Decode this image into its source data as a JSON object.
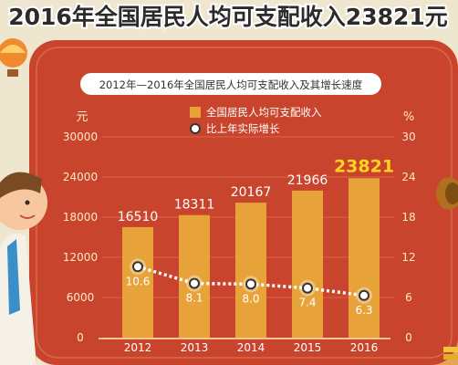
{
  "headline": "2016年全国居民人均可支配收入23821元",
  "chart_data": {
    "type": "bar",
    "title": "2012年—2016年全国居民人均可支配收入及其增长速度",
    "categories": [
      "2012",
      "2013",
      "2014",
      "2015",
      "2016"
    ],
    "y_left_unit": "元",
    "y_right_unit": "%",
    "ylim_left": [
      0,
      30000
    ],
    "ylim_right": [
      0,
      30
    ],
    "y_left_ticks": [
      "0",
      "6000",
      "12000",
      "18000",
      "24000",
      "30000"
    ],
    "y_right_ticks": [
      "0",
      "6",
      "12",
      "18",
      "24",
      "30"
    ],
    "legend_position": "top",
    "series": [
      {
        "name": "全国居民人均可支配收入",
        "type": "bar",
        "axis": "left",
        "values": [
          16510,
          18311,
          20167,
          21966,
          23821
        ],
        "labels": [
          "16510",
          "18311",
          "20167",
          "21966",
          "23821"
        ],
        "color": "#e7a23a",
        "highlight_color": "#ffd21f"
      },
      {
        "name": "比上年实际增长",
        "type": "line",
        "axis": "right",
        "values": [
          10.6,
          8.1,
          8.0,
          7.4,
          6.3
        ],
        "labels": [
          "10.6",
          "8.1",
          "8.0",
          "7.4",
          "6.3"
        ],
        "color": "#ffffff"
      }
    ]
  },
  "colors": {
    "background": "#efe6cf",
    "panel": "#c9442c",
    "panel_dark": "#a93220",
    "title_bar": "#ffffff",
    "axis_text": "#ffe9c8",
    "bar": "#e7a23a"
  }
}
